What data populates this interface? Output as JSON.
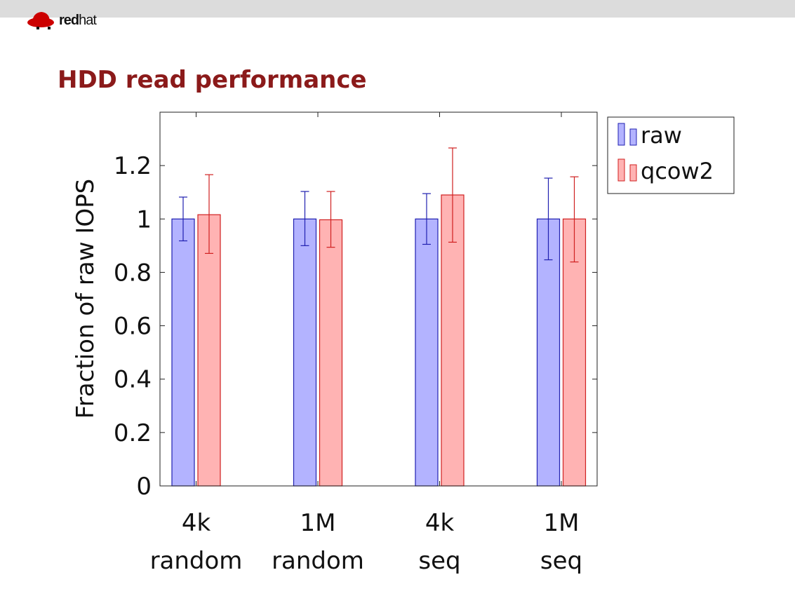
{
  "header": {
    "logo_text": "redhat",
    "logo_bold": "red",
    "logo_normal": "hat"
  },
  "slide": {
    "title": "HDD read performance"
  },
  "colors": {
    "raw_fill": "#b3b3ff",
    "raw_stroke": "#2020b0",
    "qcow2_fill": "#ffb3b3",
    "qcow2_stroke": "#d02020",
    "title": "#8b1a1a"
  },
  "chart_data": {
    "type": "bar",
    "title": "HDD read performance",
    "xlabel": "",
    "ylabel": "Fraction of raw IOPS",
    "ylim": [
      0,
      1.4
    ],
    "yticks": [
      0,
      0.2,
      0.4,
      0.6,
      0.8,
      1,
      1.2
    ],
    "ytick_labels": [
      "0",
      "0.2",
      "0.4",
      "0.6",
      "0.8",
      "1",
      "1.2"
    ],
    "categories": [
      [
        "4k",
        "random"
      ],
      [
        "1M",
        "random"
      ],
      [
        "4k",
        "seq"
      ],
      [
        "1M",
        "seq"
      ]
    ],
    "legend_position": "outside-top-right",
    "series": [
      {
        "name": "raw",
        "values": [
          1.0,
          1.0,
          1.0,
          1.0
        ],
        "err_low": [
          0.918,
          0.9,
          0.905,
          0.847
        ],
        "err_high": [
          1.082,
          1.103,
          1.095,
          1.153
        ]
      },
      {
        "name": "qcow2",
        "values": [
          1.016,
          0.997,
          1.09,
          1.0
        ],
        "err_low": [
          0.871,
          0.894,
          0.913,
          0.839
        ],
        "err_high": [
          1.166,
          1.103,
          1.266,
          1.158
        ]
      }
    ]
  }
}
